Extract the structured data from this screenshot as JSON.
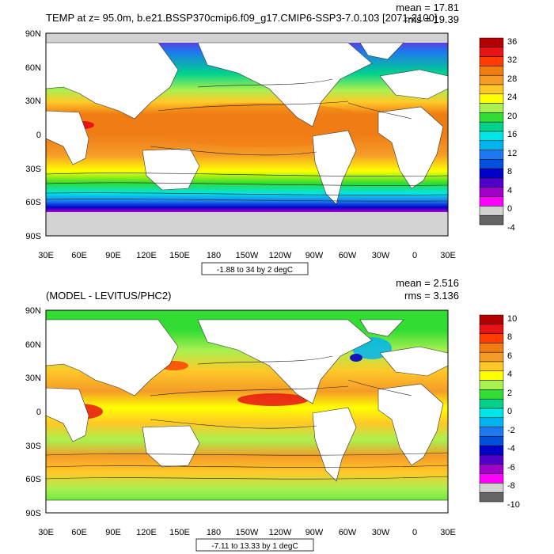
{
  "colors": {
    "land": "#ffffff",
    "ice": "#cccccc",
    "frame": "#000000",
    "contour": "#222222"
  },
  "axes": {
    "lon_labels": [
      "30E",
      "60E",
      "90E",
      "120E",
      "150E",
      "180",
      "150W",
      "120W",
      "90W",
      "60W",
      "30W",
      "0",
      "30E"
    ],
    "lat_labels": [
      "90N",
      "60N",
      "30N",
      "0",
      "30S",
      "60S",
      "90S"
    ]
  },
  "panels": [
    {
      "title": "TEMP at z=  95.0m, b.e21.BSSP370cmip6.f09_g17.CMIP6-SSP3-7.0.103 [2071-2100]",
      "mean_text": "mean = 17.81",
      "rms_text": "rms = 19.39",
      "contour_info": "-1.88 to 34 by 2 degC",
      "legend": {
        "labels": [
          "36",
          "32",
          "28",
          "24",
          "20",
          "16",
          "12",
          "8",
          "4",
          "0",
          "-4"
        ],
        "colors": [
          "#b40000",
          "#e61414",
          "#ff3c00",
          "#f07d14",
          "#f59b28",
          "#ffc828",
          "#ffff00",
          "#aaf050",
          "#32dc32",
          "#00d28c",
          "#00e6e6",
          "#00b4f0",
          "#1e78f0",
          "#0050dc",
          "#0000c8",
          "#5000c8",
          "#a000c8",
          "#ff00ff",
          "#d2d2d2",
          "#646464"
        ]
      }
    },
    {
      "title": "(MODEL - LEVITUS/PHC2)",
      "mean_text": "mean = 2.516",
      "rms_text": "rms = 3.136",
      "contour_info": "-7.11 to 13.33 by 1 degC",
      "legend": {
        "labels": [
          "10",
          "8",
          "6",
          "4",
          "2",
          "0",
          "-2",
          "-4",
          "-6",
          "-8",
          "-10"
        ],
        "colors": [
          "#b40000",
          "#e61414",
          "#ff3c00",
          "#f07d14",
          "#f59b28",
          "#ffc828",
          "#ffff00",
          "#aaf050",
          "#32dc32",
          "#00d28c",
          "#00e6e6",
          "#00b4f0",
          "#1e78f0",
          "#0050dc",
          "#0000c8",
          "#5000c8",
          "#a000c8",
          "#ff00ff",
          "#d2d2d2",
          "#646464"
        ]
      }
    }
  ]
}
